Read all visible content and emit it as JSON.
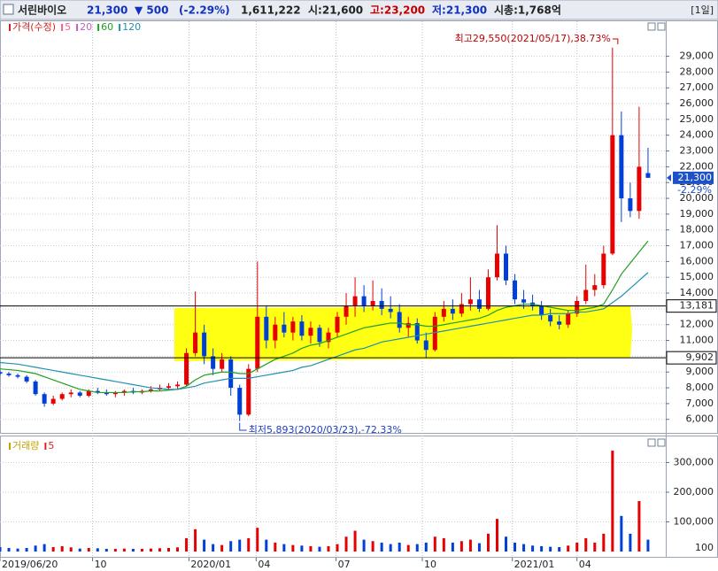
{
  "header": {
    "name": "서린바이오",
    "price": "21,300",
    "change": "▼ 500",
    "change_pct": "(-2.29%)",
    "volume": "1,611,222",
    "open": "시:21,600",
    "high": "고:23,200",
    "low": "저:21,300",
    "market_cap": "시총:1,768억",
    "period": "[1일]"
  },
  "chart_data": [
    {
      "type": "candlestick",
      "name": "가격(수정)",
      "legend_color": "#d02020",
      "up_color": "#e60000",
      "down_color": "#0040d8",
      "xlim": [
        0,
        525
      ],
      "ylim": [
        5200,
        30600
      ],
      "xticks": [
        {
          "value": 0,
          "label": "2019/06/20"
        },
        {
          "value": 73,
          "label": "10"
        },
        {
          "value": 149,
          "label": "2020/01"
        },
        {
          "value": 202,
          "label": "04"
        },
        {
          "value": 265,
          "label": "07"
        },
        {
          "value": 333,
          "label": "10"
        },
        {
          "value": 404,
          "label": "2021/01"
        },
        {
          "value": 455,
          "label": "04"
        }
      ],
      "yticks": [
        {
          "value": 6000,
          "label": "6,000"
        },
        {
          "value": 7000,
          "label": "7,000"
        },
        {
          "value": 8000,
          "label": "8,000"
        },
        {
          "value": 9000,
          "label": "9,000"
        },
        {
          "value": 10000,
          "label": "10,000"
        },
        {
          "value": 11000,
          "label": "11,000"
        },
        {
          "value": 12000,
          "label": "12,000"
        },
        {
          "value": 13000,
          "label": "13,000"
        },
        {
          "value": 14000,
          "label": "14,000"
        },
        {
          "value": 15000,
          "label": "15,000"
        },
        {
          "value": 16000,
          "label": "16,000"
        },
        {
          "value": 17000,
          "label": "17,000"
        },
        {
          "value": 18000,
          "label": "18,000"
        },
        {
          "value": 19000,
          "label": "19,000"
        },
        {
          "value": 20000,
          "label": "20,000"
        },
        {
          "value": 21000,
          "label": "21,000"
        },
        {
          "value": 22000,
          "label": "22,000"
        },
        {
          "value": 23000,
          "label": "23,000"
        },
        {
          "value": 24000,
          "label": "24,000"
        },
        {
          "value": 25000,
          "label": "25,000"
        },
        {
          "value": 26000,
          "label": "26,000"
        },
        {
          "value": 27000,
          "label": "27,000"
        },
        {
          "value": 28000,
          "label": "28,000"
        },
        {
          "value": 29000,
          "label": "29,000"
        }
      ],
      "grid": true,
      "x": [
        0,
        7,
        14,
        21,
        28,
        35,
        42,
        49,
        56,
        63,
        70,
        77,
        84,
        91,
        98,
        105,
        112,
        119,
        126,
        133,
        140,
        147,
        154,
        161,
        168,
        175,
        182,
        189,
        196,
        203,
        210,
        217,
        224,
        231,
        238,
        245,
        252,
        259,
        266,
        273,
        280,
        287,
        294,
        301,
        308,
        315,
        322,
        329,
        336,
        343,
        350,
        357,
        364,
        371,
        378,
        385,
        392,
        399,
        406,
        413,
        420,
        427,
        434,
        441,
        448,
        455,
        462,
        469,
        476,
        483,
        490,
        497,
        504,
        511
      ],
      "open": [
        9000,
        8900,
        8800,
        8700,
        8400,
        7600,
        7000,
        7300,
        7600,
        7700,
        7500,
        7800,
        7700,
        7600,
        7700,
        7800,
        7700,
        7800,
        7900,
        8000,
        8100,
        8200,
        10200,
        11500,
        10000,
        9200,
        9800,
        8000,
        6300,
        9200,
        12500,
        11000,
        12000,
        11500,
        12200,
        11300,
        11800,
        10900,
        11500,
        12500,
        13200,
        13800,
        13200,
        13500,
        13000,
        12800,
        11800,
        12100,
        11000,
        10400,
        12500,
        13000,
        12700,
        13300,
        13600,
        13000,
        15000,
        16500,
        14800,
        13600,
        13400,
        13200,
        12600,
        12200,
        12000,
        12700,
        13500,
        14200,
        14500,
        16500,
        24000,
        20000,
        19200,
        21600
      ],
      "high": [
        9100,
        9000,
        8900,
        8800,
        8500,
        7700,
        7500,
        7700,
        7900,
        7800,
        7900,
        8000,
        7900,
        7800,
        7900,
        8000,
        7900,
        8100,
        8200,
        8300,
        8400,
        10500,
        14100,
        12000,
        10500,
        10200,
        10000,
        8200,
        9500,
        16000,
        13200,
        12500,
        12800,
        12500,
        12600,
        12200,
        12000,
        11800,
        12800,
        14000,
        15000,
        14500,
        14800,
        14300,
        13800,
        13300,
        12500,
        12400,
        11500,
        12800,
        13500,
        13600,
        14000,
        15000,
        14200,
        15500,
        18300,
        17000,
        15200,
        14200,
        13900,
        13500,
        13000,
        12600,
        12900,
        13800,
        15800,
        15200,
        17000,
        29550,
        25500,
        21000,
        25800,
        23200
      ],
      "low": [
        8800,
        8700,
        8600,
        8300,
        7500,
        6800,
        6900,
        7200,
        7400,
        7400,
        7400,
        7600,
        7500,
        7400,
        7500,
        7600,
        7600,
        7700,
        7800,
        7900,
        7900,
        8100,
        10000,
        9500,
        8800,
        9000,
        7500,
        5893,
        6200,
        9000,
        10500,
        10500,
        11200,
        11000,
        11000,
        10800,
        10600,
        10500,
        11200,
        12000,
        12500,
        12800,
        12900,
        12600,
        12400,
        11500,
        11200,
        10800,
        9900,
        10300,
        12200,
        12300,
        12500,
        12900,
        12800,
        12900,
        14800,
        14500,
        13300,
        13000,
        12900,
        12300,
        11900,
        11700,
        11800,
        12500,
        13300,
        13800,
        14300,
        16400,
        18500,
        18800,
        18700,
        21300
      ],
      "close": [
        8900,
        8800,
        8700,
        8400,
        7600,
        7000,
        7300,
        7600,
        7700,
        7500,
        7800,
        7700,
        7600,
        7700,
        7800,
        7700,
        7800,
        7900,
        8000,
        8100,
        8200,
        10200,
        11500,
        10000,
        9200,
        9800,
        8000,
        6300,
        9200,
        12500,
        11000,
        12000,
        11500,
        12200,
        11300,
        11800,
        10900,
        11500,
        12500,
        13200,
        13800,
        13200,
        13500,
        13000,
        12800,
        11800,
        12100,
        11000,
        10400,
        12500,
        13000,
        12700,
        13300,
        13600,
        13000,
        15000,
        16500,
        14800,
        13600,
        13400,
        13200,
        12600,
        12200,
        12000,
        12700,
        13500,
        14200,
        14500,
        16500,
        24000,
        20000,
        19200,
        22000,
        21300
      ],
      "ma": [
        {
          "name": "5",
          "color": "#ff5c8a"
        },
        {
          "name": "20",
          "color": "#c060c0"
        },
        {
          "name": "60",
          "color": "#20a020",
          "values": [
            9200,
            9150,
            9100,
            9000,
            8900,
            8700,
            8500,
            8300,
            8100,
            7900,
            7800,
            7700,
            7700,
            7700,
            7700,
            7750,
            7750,
            7800,
            7800,
            7850,
            7900,
            8100,
            8500,
            8800,
            8900,
            9000,
            9000,
            8900,
            8900,
            9200,
            9500,
            9800,
            10000,
            10200,
            10500,
            10700,
            10800,
            11000,
            11200,
            11400,
            11600,
            11800,
            11900,
            12000,
            12100,
            12100,
            12000,
            12000,
            11900,
            11900,
            12000,
            12100,
            12200,
            12300,
            12400,
            12600,
            12900,
            13100,
            13200,
            13300,
            13300,
            13200,
            13100,
            13000,
            12900,
            12900,
            13000,
            13100,
            13300,
            14200,
            15200,
            15900,
            16600,
            17300
          ]
        },
        {
          "name": "120",
          "color": "#2090b0",
          "values": [
            9600,
            9550,
            9500,
            9400,
            9300,
            9200,
            9100,
            9000,
            8900,
            8800,
            8700,
            8600,
            8500,
            8400,
            8300,
            8200,
            8100,
            8000,
            7950,
            7900,
            7900,
            8000,
            8100,
            8300,
            8400,
            8500,
            8600,
            8600,
            8600,
            8700,
            8800,
            8900,
            9000,
            9100,
            9300,
            9400,
            9600,
            9800,
            10000,
            10200,
            10400,
            10500,
            10700,
            10900,
            11000,
            11100,
            11200,
            11300,
            11400,
            11500,
            11600,
            11700,
            11800,
            11900,
            12000,
            12100,
            12200,
            12300,
            12400,
            12500,
            12600,
            12600,
            12700,
            12700,
            12700,
            12800,
            12800,
            12900,
            13000,
            13400,
            13800,
            14300,
            14800,
            15300
          ]
        }
      ],
      "annotations": [
        {
          "text": "최고29,550(2021/05/17),38.73%",
          "x": 483,
          "y": 29550,
          "color": "#c00000"
        },
        {
          "text": "최저5,893(2020/03/23),-72.33%",
          "x": 189,
          "y": 5893,
          "color": "#2040c0"
        }
      ],
      "hlines": [
        {
          "value": 13181,
          "label": "13,181"
        },
        {
          "value": 9902,
          "label": "9,902"
        }
      ],
      "last_label": {
        "value": 21300,
        "label": "21,300"
      },
      "last_change": "-2.29%"
    },
    {
      "type": "bar",
      "name": "거래량",
      "legend_color": "#c8a000",
      "ma_name": "5",
      "ma_color": "#e02020",
      "ylim": [
        0,
        367000
      ],
      "yticks": [
        {
          "value": 100000,
          "label": "100,000"
        },
        {
          "value": 200000,
          "label": "200,000"
        },
        {
          "value": 300000,
          "label": "300,000"
        }
      ],
      "values": [
        15000,
        12000,
        10000,
        12000,
        20000,
        25000,
        15000,
        18000,
        14000,
        10000,
        12000,
        11000,
        9000,
        9000,
        10000,
        9000,
        9000,
        10000,
        11000,
        12000,
        14000,
        45000,
        75000,
        40000,
        25000,
        22000,
        35000,
        40000,
        45000,
        80000,
        40000,
        30000,
        25000,
        22000,
        20000,
        18000,
        16000,
        18000,
        25000,
        50000,
        70000,
        40000,
        35000,
        30000,
        25000,
        30000,
        22000,
        25000,
        30000,
        50000,
        45000,
        30000,
        35000,
        40000,
        28000,
        60000,
        110000,
        50000,
        30000,
        25000,
        20000,
        18000,
        16000,
        15000,
        20000,
        30000,
        45000,
        30000,
        60000,
        340000,
        120000,
        60000,
        170000,
        40000
      ],
      "marker_label": "100"
    }
  ]
}
